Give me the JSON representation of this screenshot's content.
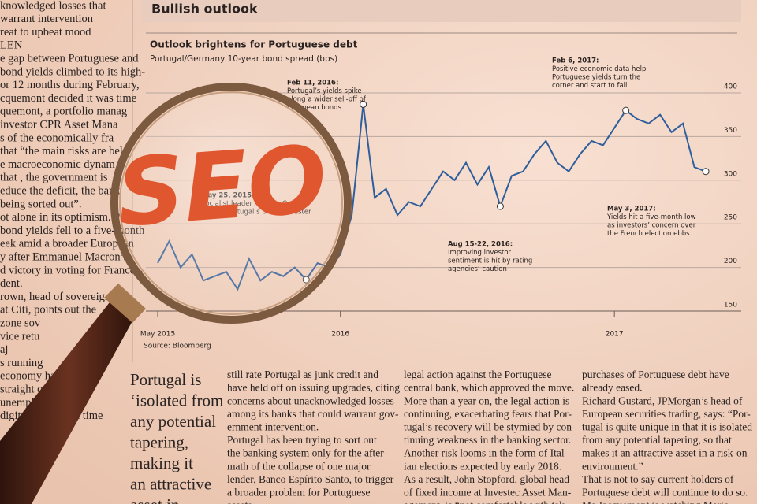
{
  "header": {
    "title": "Bullish outlook"
  },
  "left_column": {
    "lines": [
      "knowledged losses that",
      "warrant intervention",
      "reat to upbeat mood",
      "LEN",
      "e gap between Portuguese and",
      "bond yields climbed to its high-",
      "or 12 months during February,",
      "cquemont decided it was time",
      "quemont, a portfolio manag",
      "investor CPR Asset Mana",
      "s of the economically fra",
      "that “the main risks are bel",
      "e macroeconomic dynam",
      "that , the government is",
      "educe the deficit, the bank",
      "being sorted out”.",
      "ot alone in its optimism. P",
      "bond yields fell to a five-month",
      "eek amid a broader European",
      "y after Emmanuel Macron’s",
      "d victory in voting for France’s",
      "dent.",
      "rown, head of sovereign d",
      "at Citi, points out the",
      "zone sov",
      "vice retu",
      "aj",
      "s running",
      "economy has",
      "straight quarters,",
      "unemployment fell",
      "digits for the first time"
    ]
  },
  "chart_data": {
    "type": "line",
    "title": "Outlook brightens for Portuguese debt",
    "subtitle": "Portugal/Germany 10-year bond spread (bps)",
    "source": "Source: Bloomberg",
    "categories": [
      "May 2015",
      null,
      null,
      null,
      null,
      null,
      null,
      null,
      null,
      null,
      null,
      null,
      null,
      null,
      null,
      null,
      "2016",
      null,
      null,
      null,
      null,
      null,
      null,
      null,
      null,
      null,
      null,
      null,
      null,
      null,
      null,
      null,
      null,
      null,
      null,
      null,
      null,
      null,
      null,
      null,
      "2017",
      null,
      null,
      null,
      null,
      null,
      null,
      null,
      null
    ],
    "series": [
      {
        "color": "#2f5e9c",
        "values": [
          205,
          230,
          200,
          215,
          185,
          190,
          195,
          175,
          210,
          185,
          195,
          190,
          200,
          186,
          205,
          200,
          215,
          260,
          387,
          280,
          290,
          260,
          275,
          270,
          290,
          310,
          300,
          320,
          295,
          315,
          270,
          305,
          310,
          330,
          345,
          320,
          310,
          330,
          345,
          340,
          360,
          380,
          370,
          365,
          375,
          355,
          365,
          315,
          310
        ]
      }
    ],
    "ylim": [
      150,
      400
    ],
    "yticks": [
      150,
      200,
      250,
      300,
      350,
      400
    ],
    "grid": true,
    "annotations": [
      {
        "lines": [
          "May 25, 2015:",
          "Socialist leader António Costa",
          "named Portugal’s prime minister"
        ]
      },
      {
        "lines": [
          "Feb 11, 2016:",
          "Portugal’s yields spike",
          "along a wider sell-off of",
          "European bonds"
        ]
      },
      {
        "lines": [
          "Aug 15-22, 2016:",
          "Improving investor",
          "sentiment is hit by rating",
          "agencies’ caution"
        ]
      },
      {
        "lines": [
          "Feb 6, 2017:",
          "Positive economic data help",
          "Portuguese yields turn the",
          "corner and start to fall"
        ]
      },
      {
        "lines": [
          "May 3, 2017:",
          "Yields hit a five-month low",
          "as investors’ concern over",
          "the French election ebbs"
        ]
      }
    ]
  },
  "pull_quote": {
    "lines": [
      "Portugal is",
      "‘isolated from",
      "any potential",
      "tapering,",
      "making it",
      "an attractive",
      "asset in"
    ]
  },
  "columns": [
    {
      "lines": [
        "still rate Portugal as junk credit and",
        "have held off on issuing upgrades, citing",
        "concerns about unacknowledged losses",
        "among its banks that could warrant gov-",
        "ernment intervention.",
        "Portugal has been trying to sort out",
        "the banking system only for the after-",
        "math of the collapse of one major",
        "lender, Banco Espírito Santo, to trigger",
        "a broader problem for Portuguese",
        "assets."
      ]
    },
    {
      "lines": [
        "legal action against the Portuguese",
        "central bank, which approved the move.",
        "More than a year on, the legal action is",
        "continuing, exacerbating fears that Por-",
        "tugal’s recovery will be stymied by con-",
        "tinuing weakness in the banking sector.",
        "Another risk looms in the form of Ital-",
        "ian elections expected by early 2018.",
        "As a result, John Stopford, global head",
        "of fixed income at Investec Asset Man-",
        "agement, is “not comfortable with tak-"
      ]
    },
    {
      "lines": [
        "purchases of Portuguese debt have",
        "already eased.",
        "Richard Gustard, JPMorgan’s head of",
        "European securities trading, says: “Por-",
        "tugal is quite unique in that it is isolated",
        "from any potential tapering, so that",
        "makes it an attractive asset in a risk-on",
        "environment.”",
        "That is not to say current holders of",
        "Portuguese debt will continue to do so.",
        "Ms Jacquemont is watching Mario"
      ]
    }
  ],
  "lens": {
    "text": "SEO"
  }
}
